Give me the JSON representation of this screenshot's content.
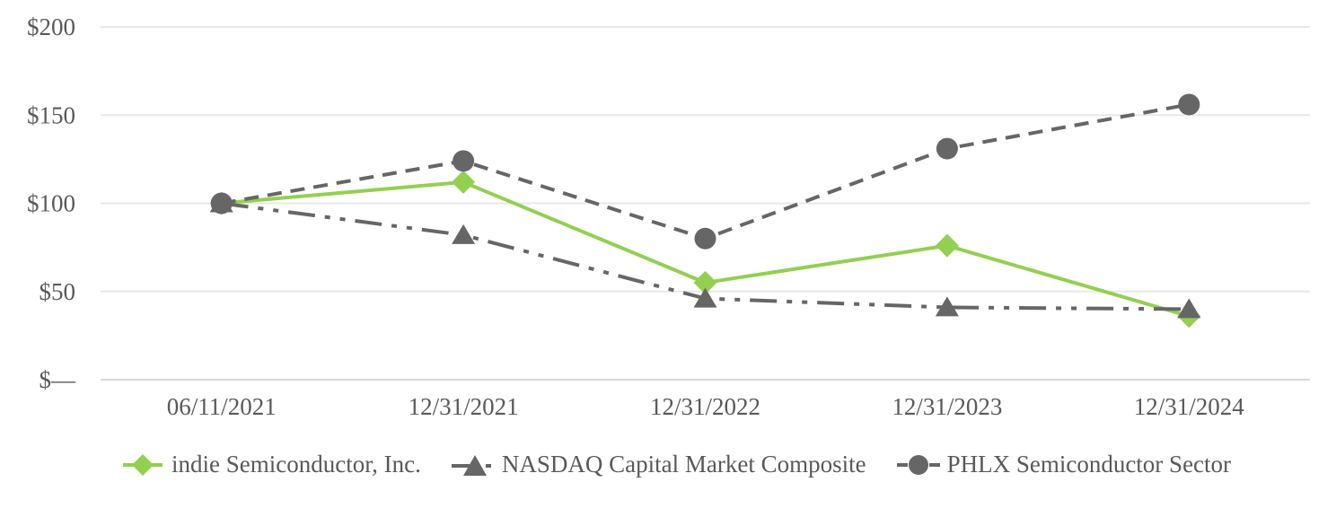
{
  "chart_data": {
    "type": "line",
    "title": "",
    "xlabel": "",
    "ylabel": "",
    "categories": [
      "06/11/2021",
      "12/31/2021",
      "12/31/2022",
      "12/31/2023",
      "12/31/2024"
    ],
    "series": [
      {
        "name": "indie Semiconductor, Inc.",
        "values": [
          100,
          112,
          55,
          76,
          36
        ],
        "color": "#92d050",
        "marker": "diamond",
        "line_style": "solid"
      },
      {
        "name": "NASDAQ Capital Market Composite",
        "values": [
          100,
          82,
          46,
          41,
          40
        ],
        "color": "#666666",
        "marker": "triangle",
        "line_style": "dash-dot-dot"
      },
      {
        "name": "PHLX Semiconductor Sector",
        "values": [
          100,
          124,
          80,
          131,
          156
        ],
        "color": "#666666",
        "marker": "circle",
        "line_style": "dashed"
      }
    ],
    "ylim": [
      0,
      200
    ],
    "y_ticks": [
      {
        "value": 0,
        "label": "$—"
      },
      {
        "value": 50,
        "label": "$50"
      },
      {
        "value": 100,
        "label": "$100"
      },
      {
        "value": 150,
        "label": "$150"
      },
      {
        "value": 200,
        "label": "$200"
      }
    ],
    "grid": true,
    "legend_position": "bottom"
  },
  "colors": {
    "background": "#ffffff",
    "grid": "#e8e8e8",
    "zero_line": "#d9d9d9",
    "text": "#595959",
    "green": "#92d050",
    "gray": "#666666"
  }
}
